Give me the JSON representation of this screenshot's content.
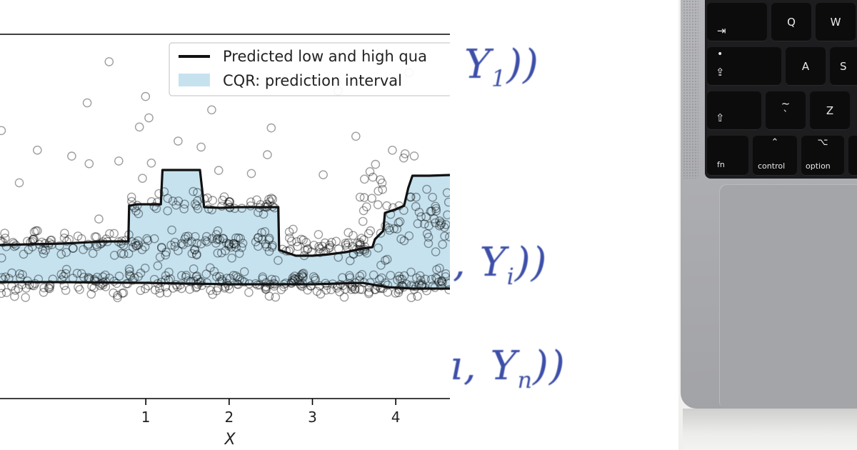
{
  "chart_data": {
    "type": "scatter",
    "xlabel": "X",
    "ylabel": "",
    "xlim": [
      -0.75,
      4.65
    ],
    "ylim": [
      -1.9,
      3.2
    ],
    "x_ticks": [
      1,
      2,
      3,
      4
    ],
    "tick_labels": [
      "1",
      "2",
      "3",
      "4"
    ],
    "grid": false,
    "legend": {
      "placement": "top-right",
      "entries": [
        {
          "label": "Predicted low and high qua",
          "kind": "line",
          "color": "#111111"
        },
        {
          "label": "CQR: prediction interval",
          "kind": "patch",
          "color": "#c6e2ef"
        }
      ]
    },
    "series": [
      {
        "name": "Predicted low and high qua",
        "upper": {
          "x": [
            -0.75,
            0.0,
            0.5,
            0.79,
            0.8,
            0.9,
            1.0,
            1.18,
            1.2,
            1.3,
            1.5,
            1.65,
            1.7,
            1.9,
            2.1,
            2.4,
            2.59,
            2.6,
            2.8,
            3.0,
            3.2,
            3.4,
            3.6,
            3.72,
            3.75,
            3.85,
            3.87,
            4.0,
            4.1,
            4.15,
            4.2,
            4.4,
            4.65
          ],
          "y": [
            0.25,
            0.27,
            0.3,
            0.3,
            0.8,
            0.82,
            0.82,
            0.82,
            1.3,
            1.3,
            1.3,
            1.3,
            0.78,
            0.77,
            0.78,
            0.78,
            0.78,
            0.18,
            0.1,
            0.1,
            0.12,
            0.15,
            0.2,
            0.22,
            0.33,
            0.45,
            0.7,
            0.75,
            0.8,
            1.05,
            1.22,
            1.22,
            1.23
          ]
        },
        "lower": {
          "x": [
            -0.75,
            0.0,
            1.0,
            2.0,
            3.0,
            3.6,
            3.9,
            4.2,
            4.65
          ],
          "y": [
            -0.27,
            -0.27,
            -0.28,
            -0.3,
            -0.3,
            -0.28,
            -0.34,
            -0.36,
            -0.36
          ]
        }
      }
    ],
    "points": {
      "count": 700,
      "clusters": [
        {
          "x_range": [
            -0.75,
            4.65
          ],
          "y_center": -0.28,
          "spread": 0.09,
          "weight": 0.42
        },
        {
          "x_range": [
            -0.75,
            3.7
          ],
          "y_center": 0.26,
          "spread": 0.09,
          "weight": 0.3
        },
        {
          "x_range": [
            0.8,
            2.6
          ],
          "y_center": 0.8,
          "spread": 0.08,
          "weight": 0.08
        },
        {
          "x_range": [
            3.5,
            4.65
          ],
          "y_center": 0.7,
          "spread": 0.35,
          "weight": 0.1
        },
        {
          "x_range": [
            -0.75,
            4.65
          ],
          "y_center": 1.6,
          "spread": 0.55,
          "weight": 0.05
        }
      ]
    },
    "style": {
      "band_color": "#c6e2ef",
      "line_color": "#111111",
      "point_color": "#000000",
      "point_opacity": 0.38
    }
  },
  "formulas": {
    "f1": {
      "text": "Y",
      "sub": "1",
      "tail": "))"
    },
    "f2": {
      "lead": ", ",
      "text": "Y",
      "sub": "i",
      "tail": "))"
    },
    "f3": {
      "lead": "ı, ",
      "text": "Y",
      "sub": "n",
      "tail": "))"
    }
  },
  "keyboard": {
    "keys": [
      {
        "id": "tab",
        "label": "⇥",
        "small": ""
      },
      {
        "id": "q",
        "label": "Q",
        "small": ""
      },
      {
        "id": "w",
        "label": "W",
        "small": ""
      },
      {
        "id": "caps",
        "label": "⇪",
        "small": "•"
      },
      {
        "id": "a",
        "label": "A",
        "small": ""
      },
      {
        "id": "s",
        "label": "S",
        "small": ""
      },
      {
        "id": "shift",
        "label": "⇧",
        "small": ""
      },
      {
        "id": "tilde",
        "label": "~",
        "small": "`"
      },
      {
        "id": "z",
        "label": "Z",
        "small": ""
      },
      {
        "id": "fn",
        "label": "",
        "small": "fn"
      },
      {
        "id": "control",
        "label": "⌃",
        "small": "control"
      },
      {
        "id": "option",
        "label": "⌥",
        "small": "option"
      }
    ]
  }
}
